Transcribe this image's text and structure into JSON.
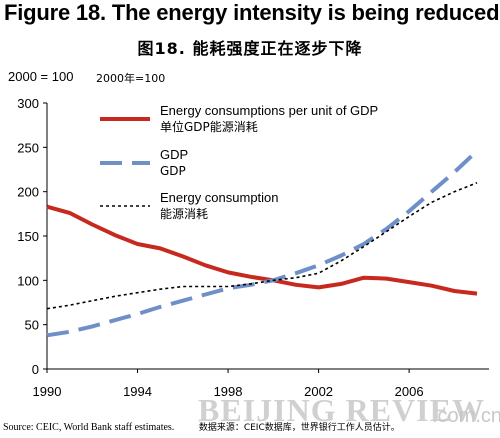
{
  "header": {
    "title_en": "Figure 18. The energy intensity is being reduced",
    "title_cn": "图18. 能耗强度正在逐步下降"
  },
  "units": {
    "left": "2000 = 100",
    "right": "2000年=100"
  },
  "chart_data": {
    "type": "line",
    "x": [
      1990,
      1991,
      1992,
      1993,
      1994,
      1995,
      1996,
      1997,
      1998,
      1999,
      2000,
      2001,
      2002,
      2003,
      2004,
      2005,
      2006,
      2007,
      2008,
      2009
    ],
    "series": [
      {
        "name": "Energy consumptions per unit of GDP",
        "name_cn": "单位GDP能源消耗",
        "color": "#c8291f",
        "style": "solid",
        "values": [
          183,
          176,
          163,
          151,
          141,
          136,
          127,
          117,
          109,
          104,
          100,
          95,
          92,
          96,
          103,
          102,
          98,
          94,
          88,
          85
        ]
      },
      {
        "name": "GDP",
        "name_cn": "GDP",
        "color": "#6f8fc9",
        "style": "long-dash",
        "values": [
          38,
          42,
          48,
          55,
          62,
          70,
          77,
          84,
          91,
          95,
          100,
          108,
          117,
          128,
          141,
          158,
          178,
          200,
          222,
          246
        ]
      },
      {
        "name": "Energy consumption",
        "name_cn": "能源消耗",
        "color": "#000000",
        "style": "short-dash",
        "values": [
          68,
          72,
          77,
          82,
          86,
          90,
          93,
          93,
          93,
          96,
          100,
          103,
          108,
          122,
          138,
          155,
          172,
          188,
          200,
          210
        ]
      }
    ],
    "x_ticks": [
      "1990",
      "1994",
      "1998",
      "2002",
      "2006"
    ],
    "x_tick_values": [
      1990,
      1994,
      1998,
      2002,
      2006
    ],
    "y_ticks": [
      "0",
      "50",
      "100",
      "150",
      "200",
      "250",
      "300"
    ],
    "ylim": [
      0,
      300
    ],
    "xlim": [
      1990,
      2009
    ],
    "grid": false,
    "legend_position": "top-right"
  },
  "footer": {
    "source_en": "Source: CEIC, World Bank staff estimates.",
    "source_cn": "数据来源：CEIC数据库，世界银行工作人员估计。",
    "watermark": "BEIJING REVIEW",
    "watermark_suffix": ".com.cn"
  }
}
